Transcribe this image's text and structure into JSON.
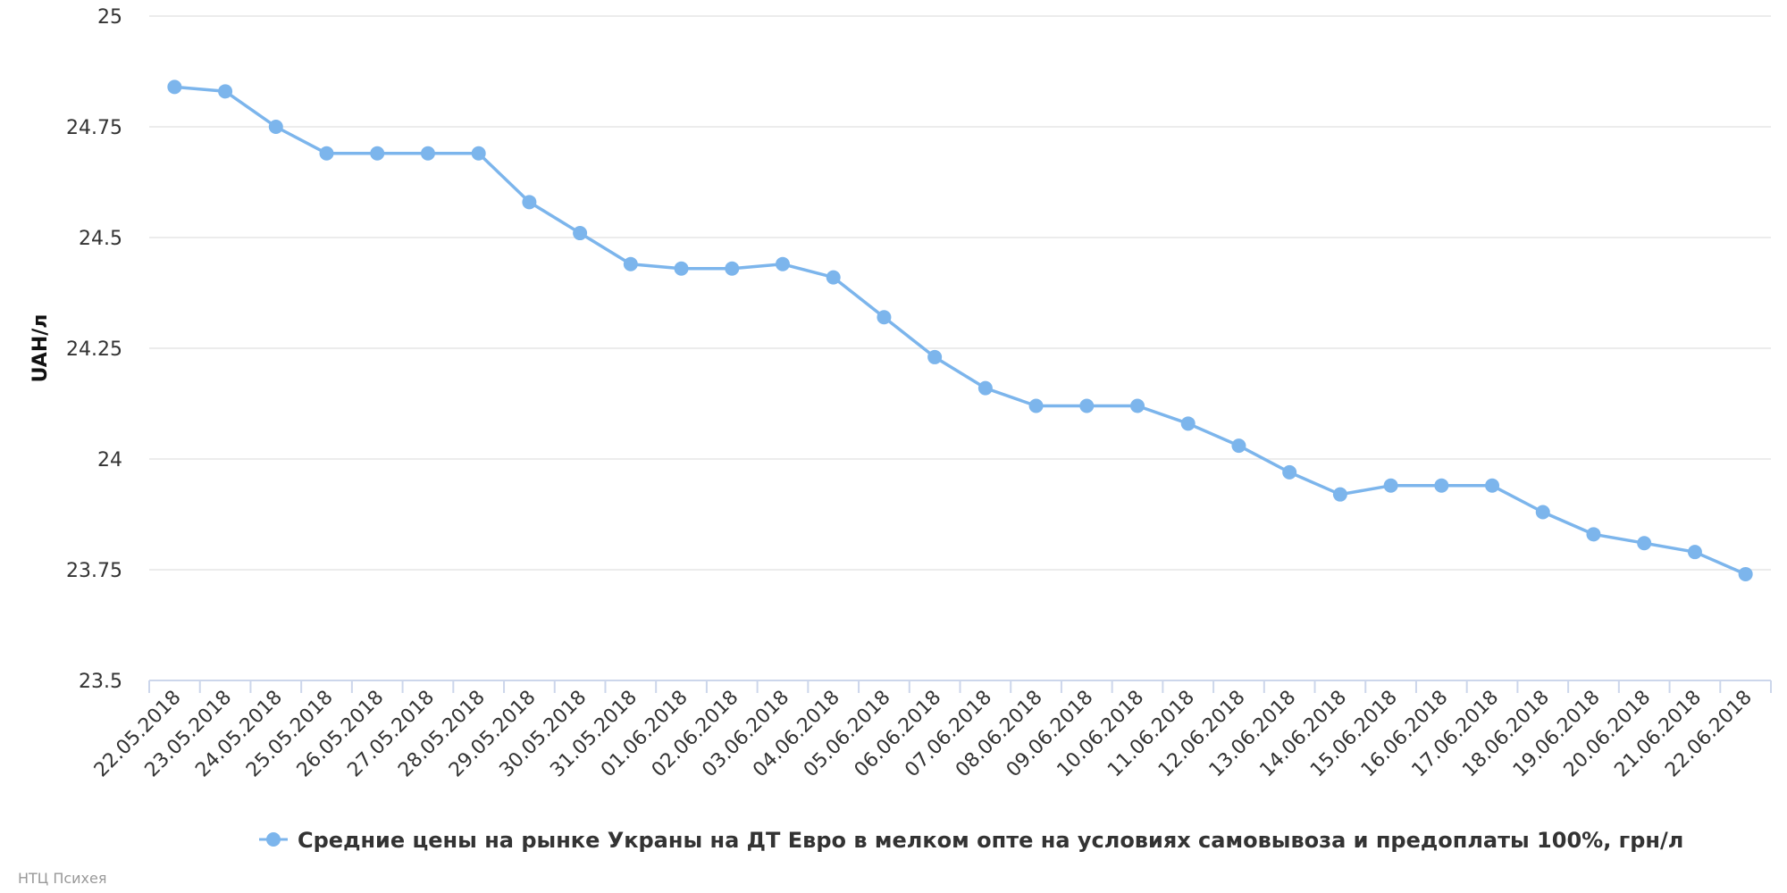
{
  "chart_data": {
    "type": "line",
    "title": "",
    "xlabel": "",
    "ylabel": "UAH/л",
    "ylim": [
      23.5,
      25
    ],
    "yticks": [
      "23.5",
      "23.75",
      "24",
      "24.25",
      "24.5",
      "24.75",
      "25"
    ],
    "grid": true,
    "legend_position": "bottom-center",
    "series_color": "#7cb5ec",
    "categories": [
      "22.05.2018",
      "23.05.2018",
      "24.05.2018",
      "25.05.2018",
      "26.05.2018",
      "27.05.2018",
      "28.05.2018",
      "29.05.2018",
      "30.05.2018",
      "31.05.2018",
      "01.06.2018",
      "02.06.2018",
      "03.06.2018",
      "04.06.2018",
      "05.06.2018",
      "06.06.2018",
      "07.06.2018",
      "08.06.2018",
      "09.06.2018",
      "10.06.2018",
      "11.06.2018",
      "12.06.2018",
      "13.06.2018",
      "14.06.2018",
      "15.06.2018",
      "16.06.2018",
      "17.06.2018",
      "18.06.2018",
      "19.06.2018",
      "20.06.2018",
      "21.06.2018",
      "22.06.2018"
    ],
    "series": [
      {
        "name": "Средние цены на рынке Украны на ДТ Евро в мелком опте на условиях самовывоза и предоплаты 100%, грн/л",
        "values": [
          24.84,
          24.83,
          24.75,
          24.69,
          24.69,
          24.69,
          24.69,
          24.58,
          24.51,
          24.44,
          24.43,
          24.43,
          24.44,
          24.41,
          24.32,
          24.23,
          24.16,
          24.12,
          24.12,
          24.12,
          24.08,
          24.03,
          23.97,
          23.92,
          23.94,
          23.94,
          23.94,
          23.88,
          23.83,
          23.81,
          23.79,
          23.74
        ]
      }
    ]
  },
  "credit": "НТЦ Психея"
}
